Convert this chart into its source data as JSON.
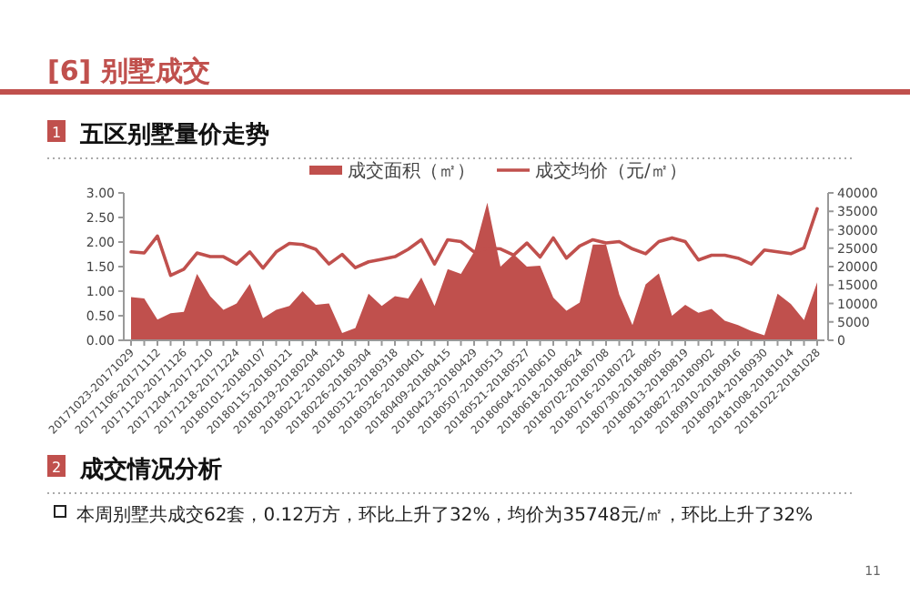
{
  "chart_data": {
    "type": "area",
    "title": "五区别墅量价走势",
    "categories": [
      "20171023-20171029",
      null,
      "20171106-20171112",
      null,
      "20171120-20171126",
      null,
      "20171204-20171210",
      null,
      "20171218-20171224",
      null,
      "20180101-20180107",
      null,
      "20180115-20180121",
      null,
      "20180129-20180204",
      null,
      "20180212-20180218",
      null,
      "20180226-20180304",
      null,
      "20180312-20180318",
      null,
      "20180326-20180401",
      null,
      "20180409-20180415",
      null,
      "20180423-20180429",
      null,
      "20180507-20180513",
      null,
      "20180521-20180527",
      null,
      "20180604-20180610",
      null,
      "20180618-20180624",
      null,
      "20180702-20180708",
      null,
      "20180716-20180722",
      null,
      "20180730-20180805",
      null,
      "20180813-20180819",
      null,
      "20180827-20180902",
      null,
      "20180910-20180916",
      null,
      "20180924-20180930",
      null,
      "20181008-20181014",
      null,
      "20181022-20181028"
    ],
    "series": [
      {
        "name": "成交面积（㎡）",
        "color": "#c0504d",
        "values": [
          0.88,
          0.85,
          0.42,
          0.55,
          0.58,
          1.35,
          0.9,
          0.62,
          0.75,
          1.15,
          0.45,
          0.62,
          0.7,
          1.0,
          0.72,
          0.75,
          0.15,
          0.25,
          0.95,
          0.7,
          0.9,
          0.85,
          1.28,
          0.7,
          1.45,
          1.35,
          1.8,
          2.8,
          1.5,
          1.75,
          1.5,
          1.52,
          0.87,
          0.6,
          0.77,
          1.95,
          1.95,
          0.93,
          0.31,
          1.14,
          1.36,
          0.5,
          0.72,
          0.56,
          0.64,
          0.4,
          0.31,
          0.19,
          0.1,
          0.95,
          0.74,
          0.41,
          1.18
        ]
      },
      {
        "name": "成交均价（元/㎡）",
        "type": "line",
        "axis": "y2",
        "color": "#c0504d",
        "values": [
          24000,
          23700,
          28300,
          17600,
          19300,
          23700,
          22700,
          22700,
          20700,
          24000,
          19600,
          24000,
          26300,
          26000,
          24700,
          20700,
          23300,
          19700,
          21300,
          22000,
          22700,
          24700,
          27300,
          20700,
          27300,
          26800,
          24000,
          25000,
          24800,
          23100,
          26400,
          22600,
          27800,
          22300,
          25600,
          27300,
          26400,
          26800,
          24800,
          23500,
          26800,
          27800,
          26800,
          21800,
          23100,
          23100,
          22300,
          20700,
          24500,
          24000,
          23500,
          25100,
          35700
        ]
      }
    ],
    "ylim": [
      0,
      3
    ],
    "yticks": [
      {
        "value": 0,
        "label": "0.00"
      },
      {
        "value": 0.5,
        "label": "0.50"
      },
      {
        "value": 1,
        "label": "1.00"
      },
      {
        "value": 1.5,
        "label": "1.50"
      },
      {
        "value": 2,
        "label": "2.00"
      },
      {
        "value": 2.5,
        "label": "2.50"
      },
      {
        "value": 3,
        "label": "3.00"
      }
    ],
    "y2lim": [
      0,
      40000
    ],
    "y2ticks": [
      0,
      5000,
      10000,
      15000,
      20000,
      25000,
      30000,
      35000,
      40000
    ],
    "legend": "top",
    "grid": false,
    "annotations": [
      "[6] 别墅成交",
      "1",
      "2",
      "成交情况分析",
      "本周别墅共成交62套，0.12万方，环比上升了32%，均价为35748元/㎡，环比上升了32%",
      "11"
    ]
  }
}
